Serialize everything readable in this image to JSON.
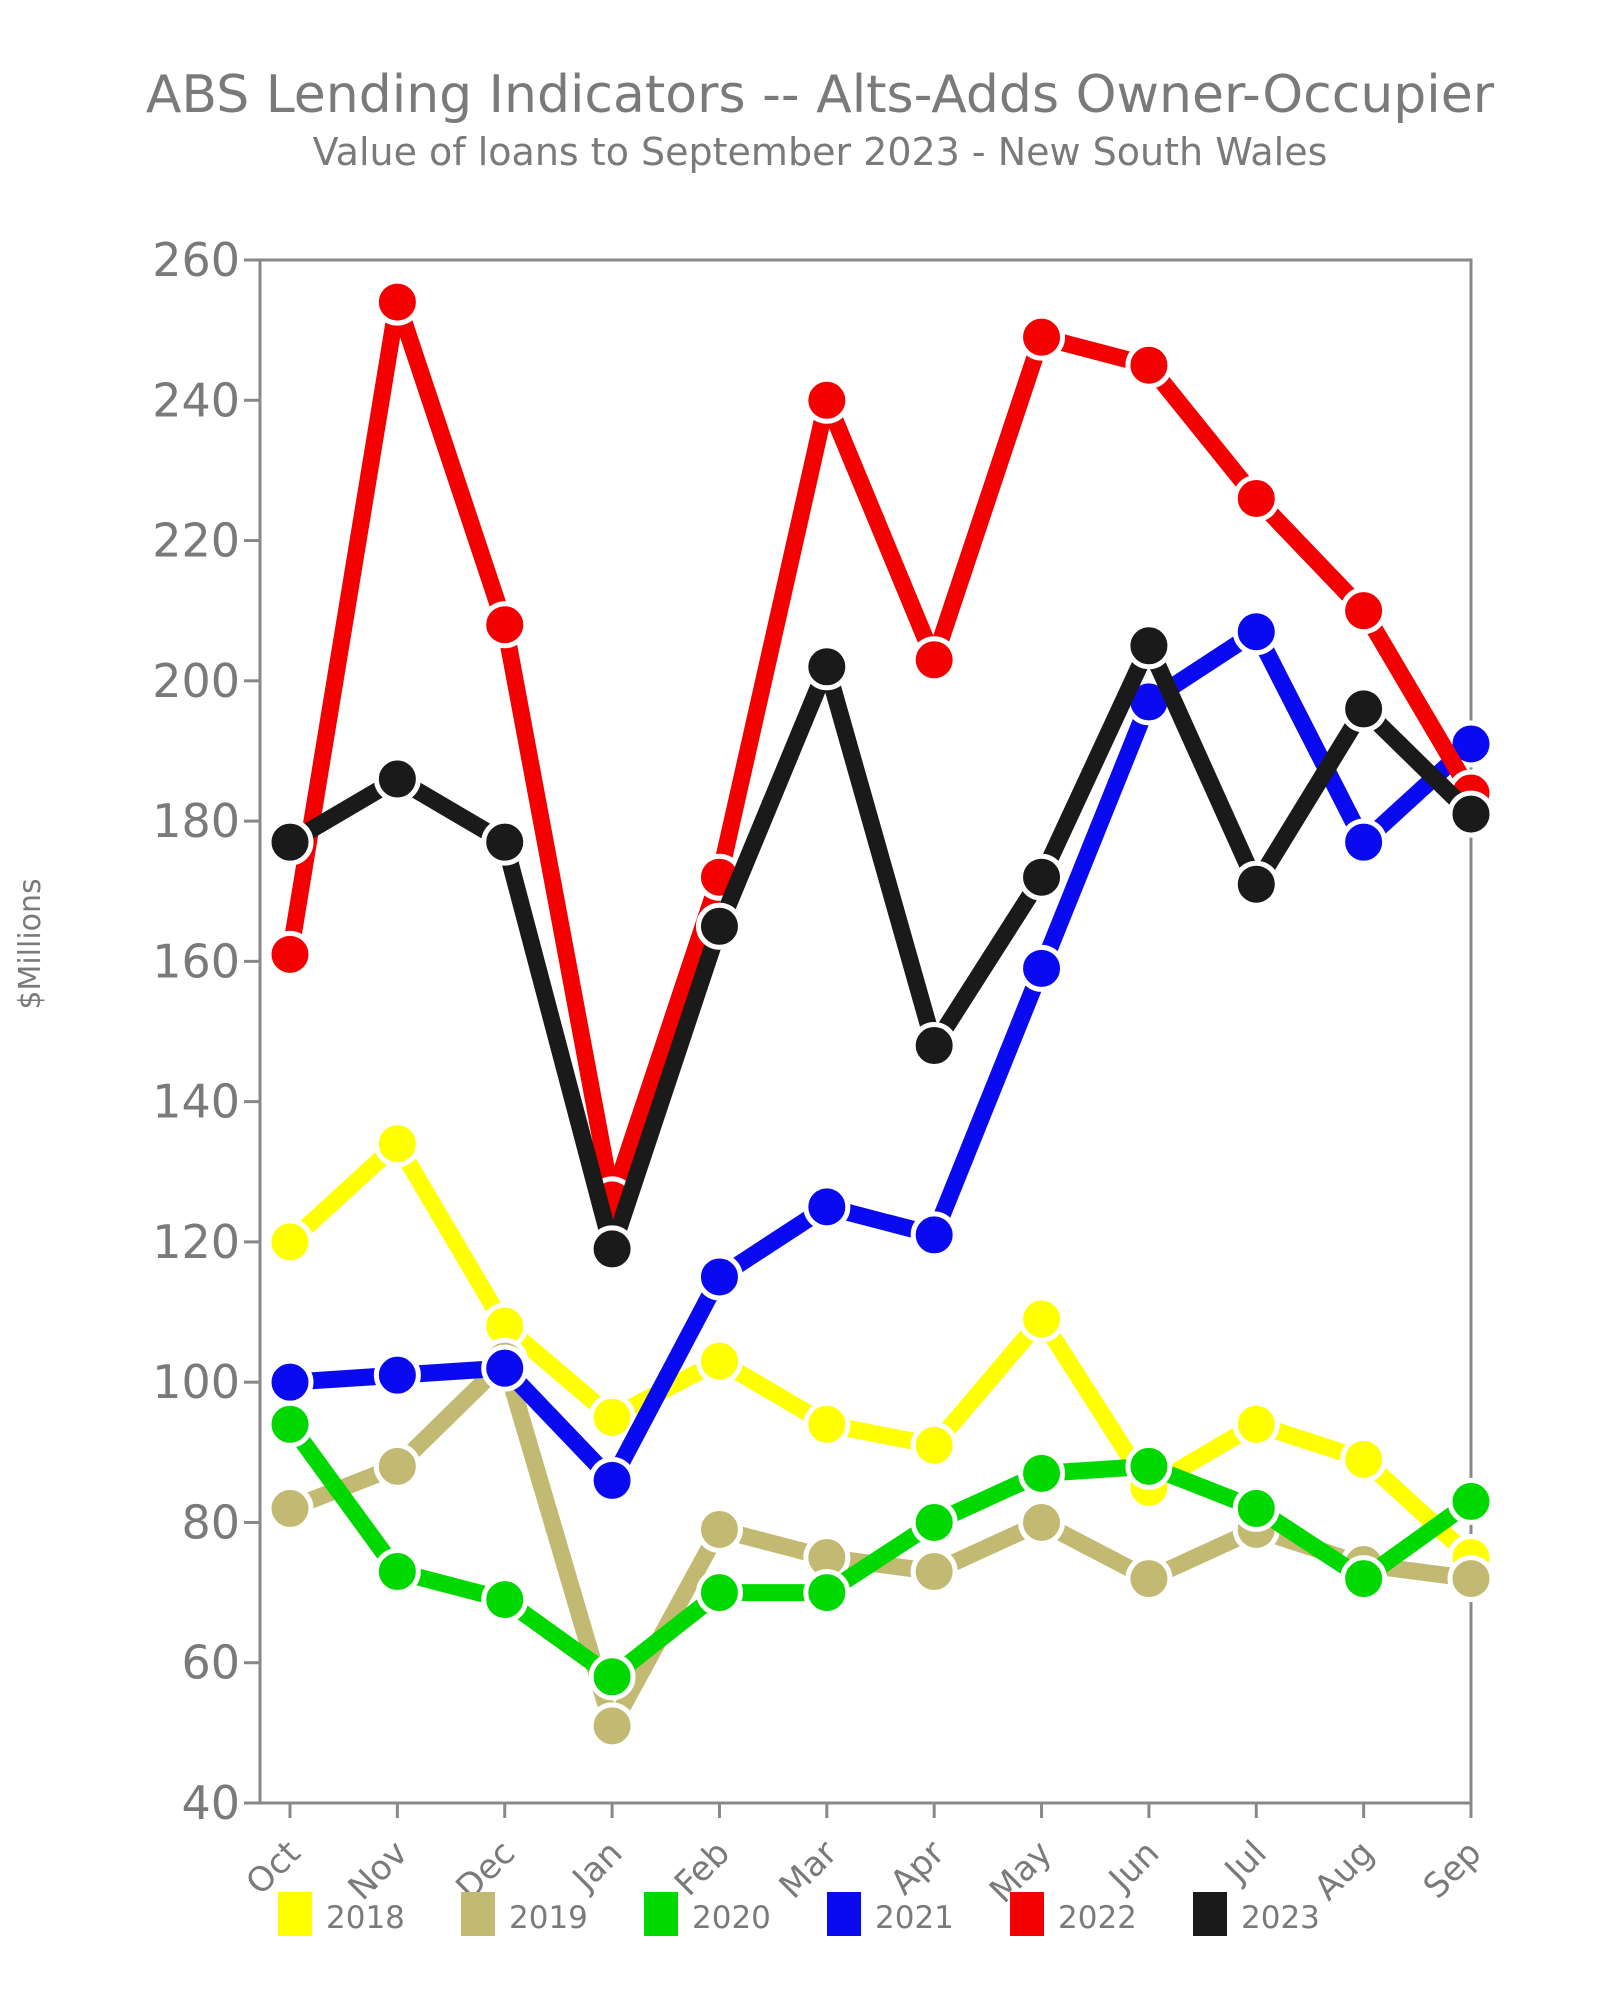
{
  "title": "ABS Lending Indicators -- Alts-Adds Owner-Occupier",
  "subtitle": "Value of loans to September 2023 - New South Wales",
  "ylabel": "$Millions",
  "text_color": "#7a7a7a",
  "axis_color": "#888888",
  "background": "#ffffff",
  "chart_data": {
    "type": "line",
    "categories": [
      "Oct",
      "Nov",
      "Dec",
      "Jan",
      "Feb",
      "Mar",
      "Apr",
      "May",
      "Jun",
      "Jul",
      "Aug",
      "Sep"
    ],
    "xlabel": "",
    "ylabel": "$Millions",
    "ylim": [
      40,
      260
    ],
    "ytick_step": 20,
    "grid": false,
    "legend_position": "bottom",
    "series": [
      {
        "name": "2018",
        "color": "#FFFF00",
        "values": [
          120,
          134,
          108,
          95,
          103,
          94,
          91,
          109,
          85,
          94,
          89,
          75
        ]
      },
      {
        "name": "2019",
        "color": "#C2BA72",
        "values": [
          82,
          88,
          103,
          51,
          79,
          75,
          73,
          80,
          72,
          79,
          74,
          72
        ]
      },
      {
        "name": "2020",
        "color": "#00D900",
        "values": [
          94,
          73,
          69,
          58,
          70,
          70,
          80,
          87,
          88,
          82,
          72,
          83
        ]
      },
      {
        "name": "2021",
        "color": "#0A0AF0",
        "values": [
          100,
          101,
          102,
          86,
          115,
          125,
          121,
          159,
          197,
          207,
          177,
          191
        ]
      },
      {
        "name": "2022",
        "color": "#F40000",
        "values": [
          161,
          254,
          208,
          126,
          172,
          240,
          203,
          249,
          245,
          226,
          210,
          184
        ]
      },
      {
        "name": "2023",
        "color": "#1A1A1A",
        "values": [
          177,
          186,
          177,
          119,
          165,
          202,
          148,
          172,
          205,
          171,
          196,
          181
        ]
      }
    ]
  }
}
